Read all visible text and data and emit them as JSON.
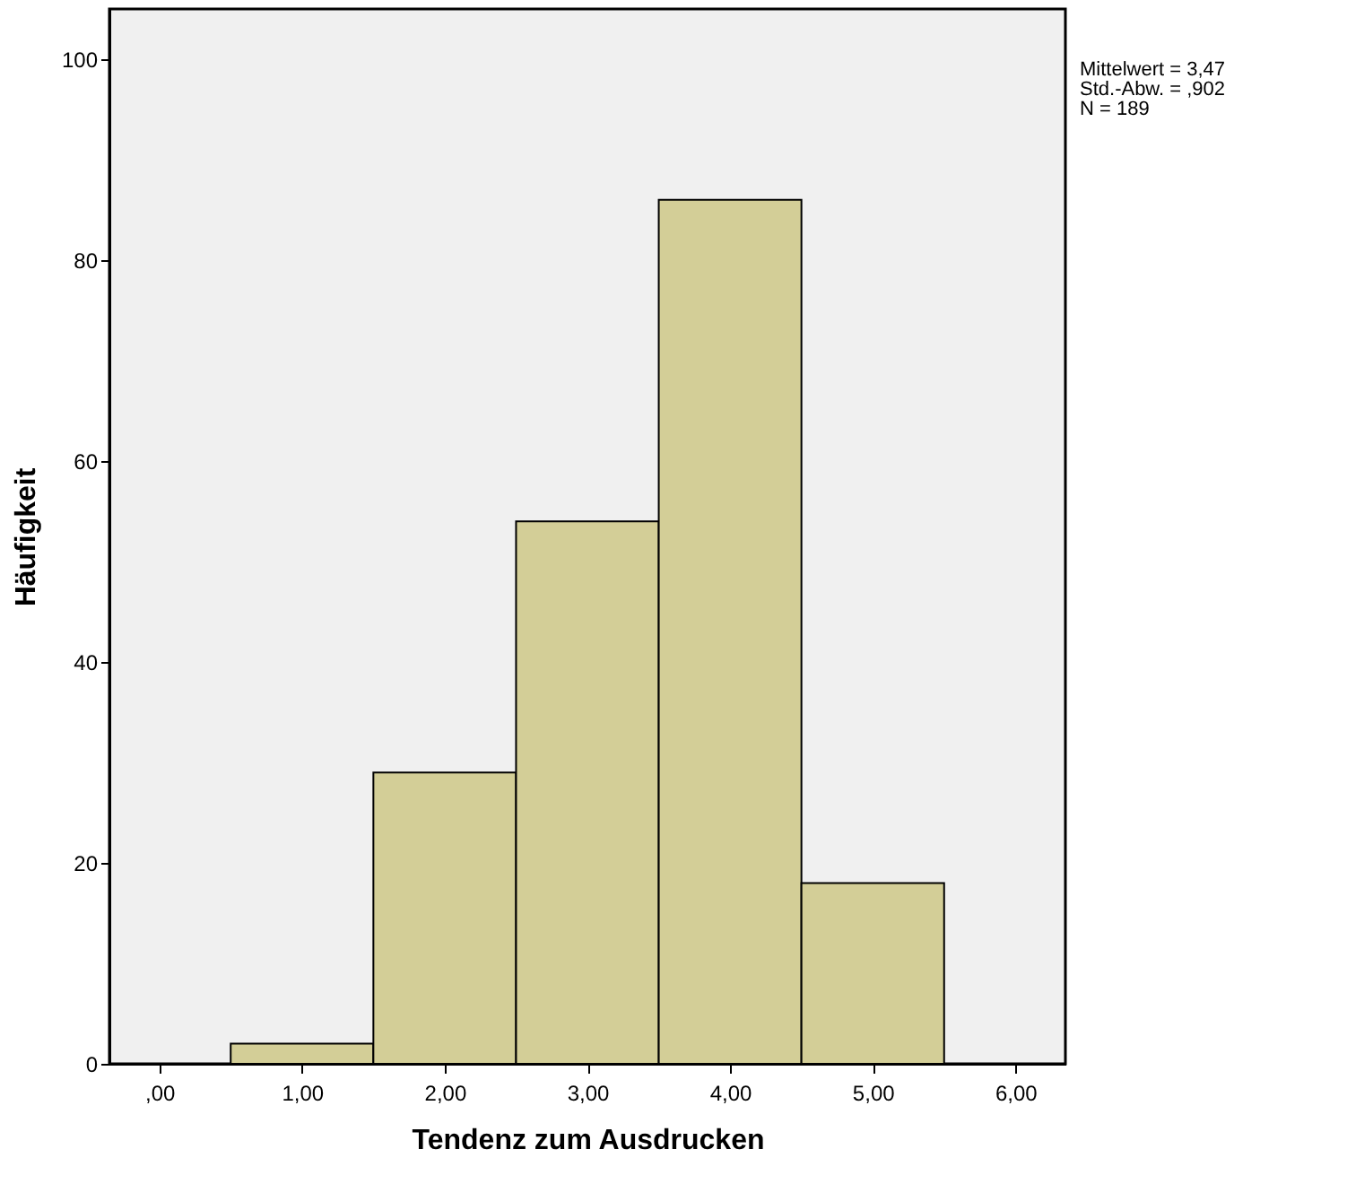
{
  "chart_data": {
    "type": "histogram",
    "xlabel": "Tendenz zum Ausdrucken",
    "ylabel": "Häufigkeit",
    "bins": [
      0.5,
      1.5,
      2.5,
      3.5,
      4.5,
      5.5
    ],
    "values": [
      2,
      29,
      54,
      86,
      18
    ],
    "color": "#d3ce97",
    "xlim": [
      -0.35,
      6.35
    ],
    "xticks": [
      {
        "value": 0,
        "label": ",00"
      },
      {
        "value": 1,
        "label": "1,00"
      },
      {
        "value": 2,
        "label": "2,00"
      },
      {
        "value": 3,
        "label": "3,00"
      },
      {
        "value": 4,
        "label": "4,00"
      },
      {
        "value": 5,
        "label": "5,00"
      },
      {
        "value": 6,
        "label": "6,00"
      }
    ],
    "ylim": [
      0,
      105
    ],
    "yticks": [
      0,
      20,
      40,
      60,
      80,
      100
    ],
    "grid": false,
    "annotations": [
      "Mittelwert = 3,47",
      "Std.-Abw. = ,902",
      "N = 189"
    ]
  }
}
